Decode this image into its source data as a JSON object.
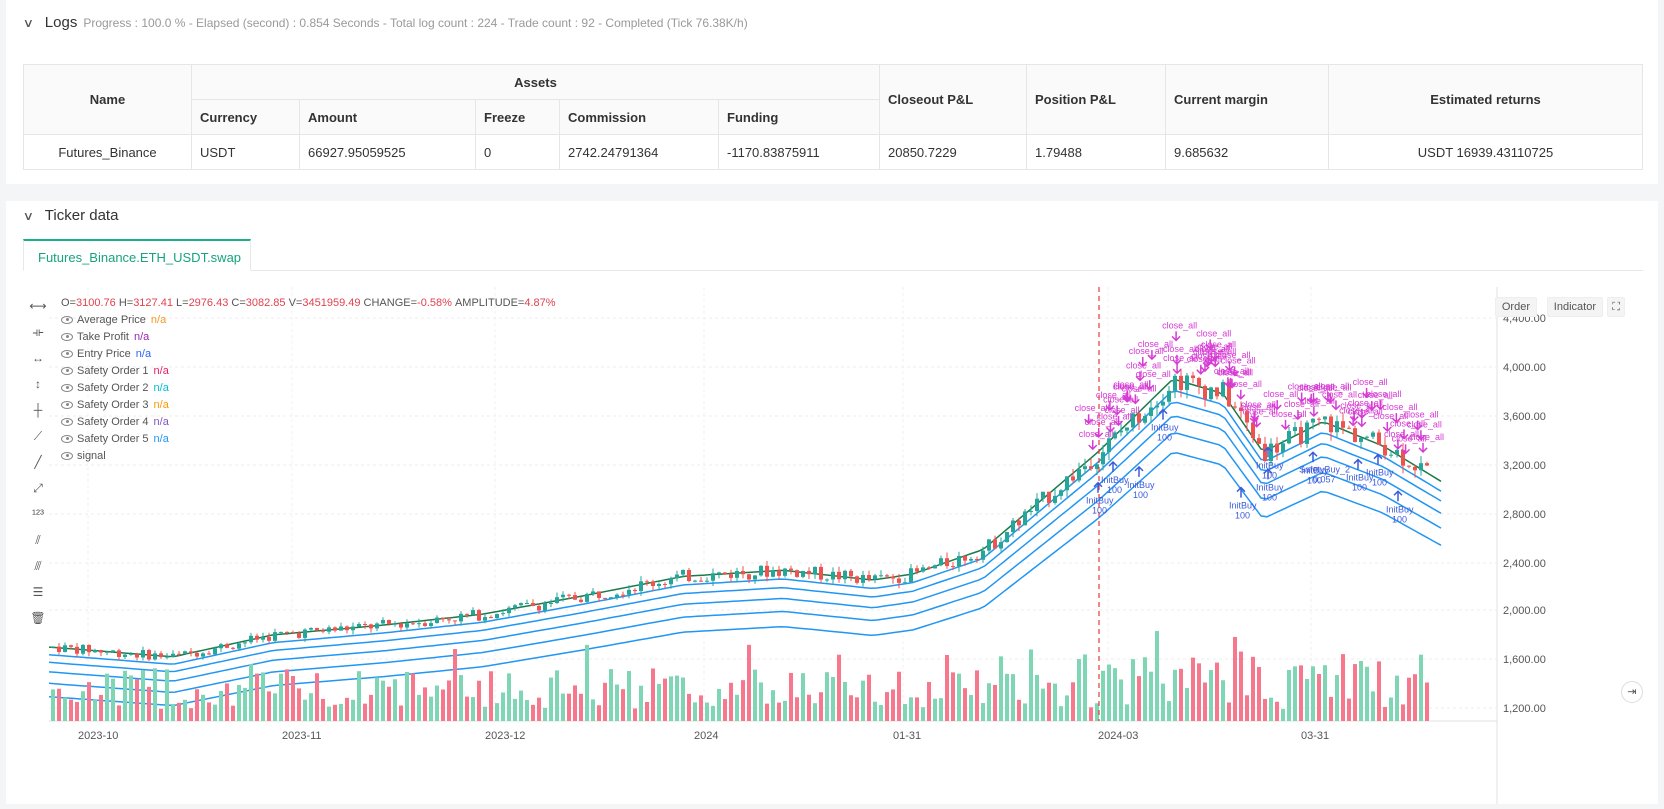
{
  "logs": {
    "title": "Logs",
    "progress": "Progress : 100.0 % - Elapsed (second) : 0.854  Seconds - Total log count : 224 - Trade count : 92 - Completed (Tick 76.38K/h)"
  },
  "assets_table": {
    "col_name": "Name",
    "group_assets": "Assets",
    "col_currency": "Currency",
    "col_amount": "Amount",
    "col_freeze": "Freeze",
    "col_commission": "Commission",
    "col_funding": "Funding",
    "col_closeout": "Closeout P&L",
    "col_position": "Position P&L",
    "col_margin": "Current margin",
    "col_returns": "Estimated returns",
    "row": {
      "name": "Futures_Binance",
      "currency": "USDT",
      "amount": "66927.95059525",
      "freeze": "0",
      "commission": "2742.24791364",
      "funding": "-1170.83875911",
      "closeout": "20850.7229",
      "position": "1.79488",
      "margin": "9.685632",
      "returns": "USDT 16939.43110725"
    }
  },
  "ticker": {
    "title": "Ticker data",
    "tab": "Futures_Binance.ETH_USDT.swap",
    "btn_order": "Order",
    "btn_indicator": "Indicator"
  },
  "ohlc": {
    "o_label": "O=",
    "o": "3100.76",
    "h_label": "H=",
    "h": "3127.41",
    "l_label": "L=",
    "l": "2976.43",
    "c_label": "C=",
    "c": "3082.85",
    "v_label": "V=",
    "v": "3451959.49",
    "change_label": "CHANGE=",
    "change": "-0.58%",
    "amp_label": "AMPLITUDE=",
    "amp": "4.87%"
  },
  "legend": [
    {
      "name": "Average Price",
      "value": "n/a",
      "color": "#f59a23"
    },
    {
      "name": "Take Profit",
      "value": "n/a",
      "color": "#9c27b0"
    },
    {
      "name": "Entry Price",
      "value": "n/a",
      "color": "#2962ff"
    },
    {
      "name": "Safety Order 1",
      "value": "n/a",
      "color": "#e91e63"
    },
    {
      "name": "Safety Order 2",
      "value": "n/a",
      "color": "#00bcd4"
    },
    {
      "name": "Safety Order 3",
      "value": "n/a",
      "color": "#ff9800"
    },
    {
      "name": "Safety Order 4",
      "value": "n/a",
      "color": "#7e57c2"
    },
    {
      "name": "Safety Order 5",
      "value": "n/a",
      "color": "#2196f3"
    },
    {
      "name": "signal",
      "value": "",
      "color": "#555555"
    }
  ],
  "chart_data": {
    "type": "candlestick",
    "y_ticks": [
      "4,400.00",
      "4,000.00",
      "3,600.00",
      "3,200.00",
      "2,800.00",
      "2,400.00",
      "2,000.00",
      "1,600.00",
      "1,200.00"
    ],
    "x_ticks": [
      "2023-10",
      "2023-11",
      "2023-12",
      "2024",
      "01-31",
      "2024-03",
      "03-31"
    ],
    "marker_labels": [
      "close_all",
      "InitBuy",
      "100",
      "SafetyBuy_2",
      "0.057"
    ],
    "colors": {
      "up": "#26a69a",
      "down": "#ef5350",
      "vol_up": "#7fd6b5",
      "vol_down": "#f7778c",
      "bands": "#2196f3",
      "avg": "#1b7a4a",
      "signal": "#d63bd3",
      "entry": "#3b5bdb"
    }
  }
}
